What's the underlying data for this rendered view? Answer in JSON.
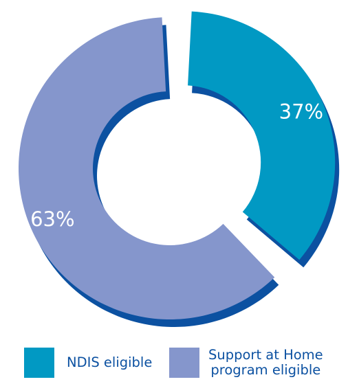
{
  "chart_data": {
    "type": "pie",
    "variant": "exploded donut",
    "slices": [
      {
        "label": "NDIS eligible",
        "value": 37,
        "display": "37%",
        "color": "#0199c3",
        "exploded": true
      },
      {
        "label": "Support at Home\nprogram eligible",
        "value": 63,
        "display": "63%",
        "color": "#8596cc",
        "exploded": false
      }
    ],
    "shadow_color": "#0c51a1",
    "label_color": "#ffffff",
    "legend_text_color": "#0c51a1",
    "legend_placement": "bottom"
  }
}
